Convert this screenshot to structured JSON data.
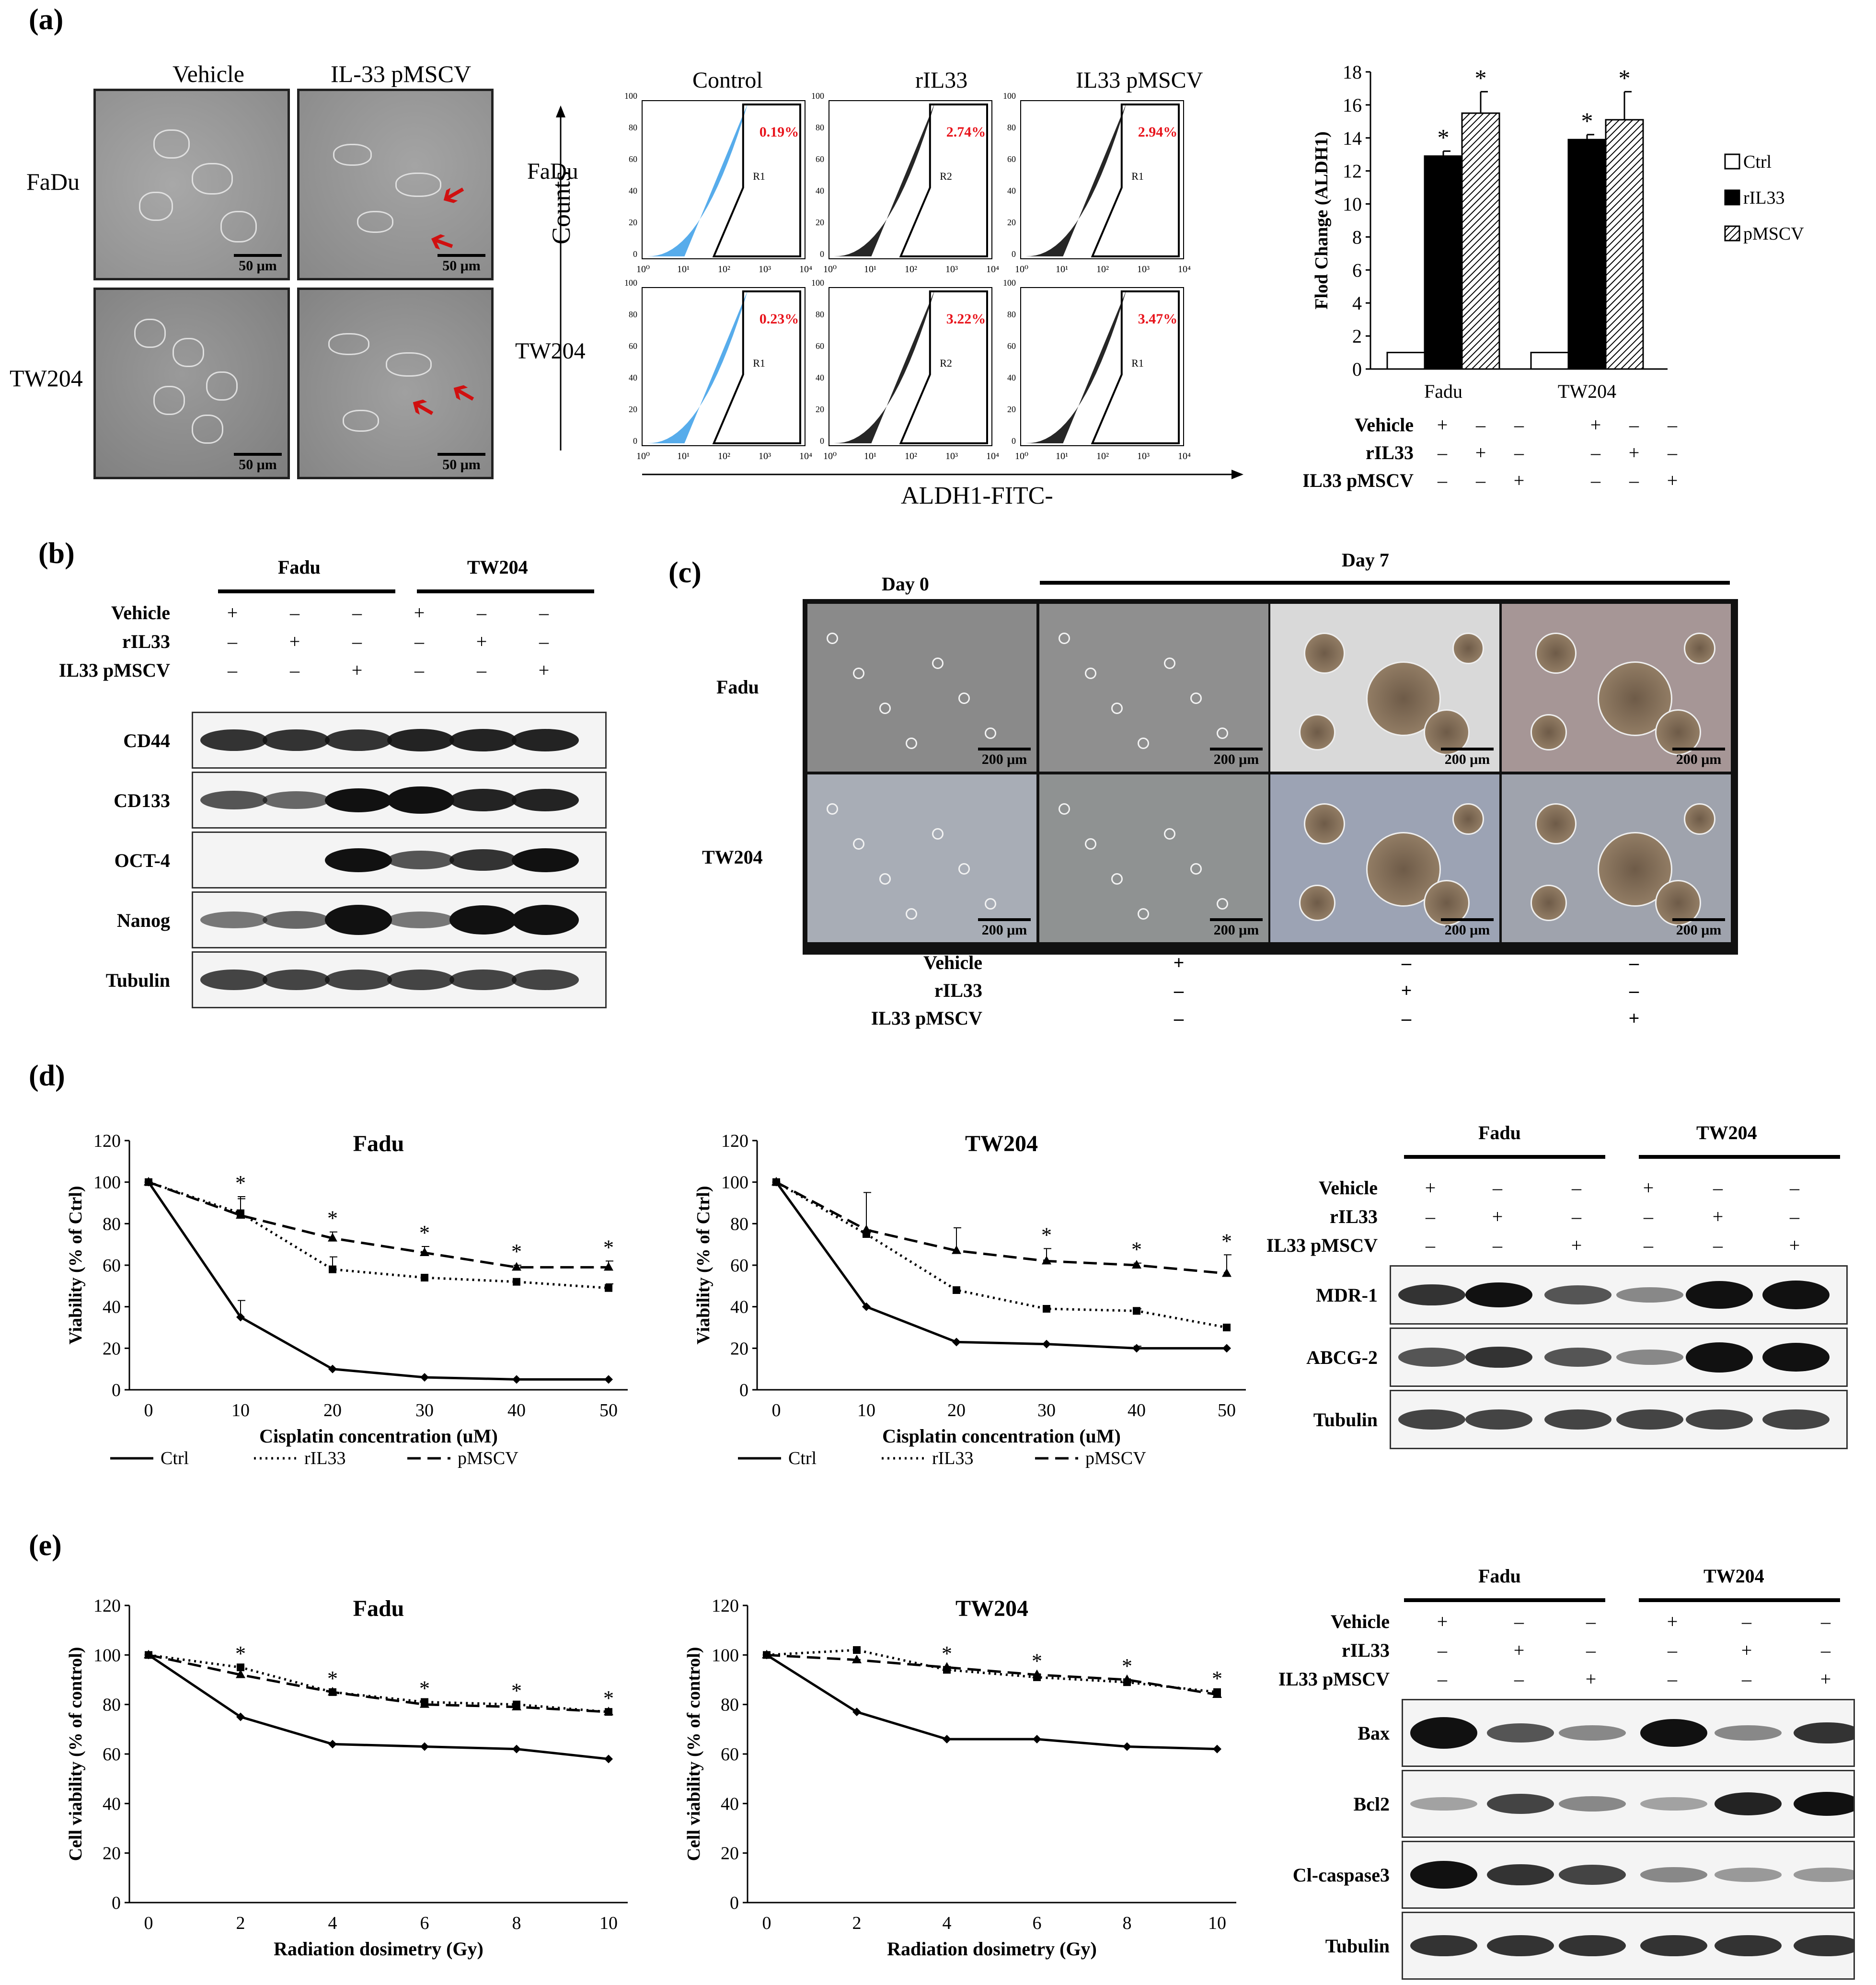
{
  "panels": {
    "a": "(a)",
    "b": "(b)",
    "c": "(c)",
    "d": "(d)",
    "e": "(e)"
  },
  "panel_a": {
    "micro": {
      "col_headers": [
        "Vehicle",
        "IL-33 pMSCV"
      ],
      "row_labels": [
        "FaDu",
        "TW204"
      ],
      "scale": "50 μm"
    },
    "flow": {
      "col_headers": [
        "Control",
        "rIL33",
        "IL33 pMSCV"
      ],
      "row_labels": [
        "FaDu",
        "TW204"
      ],
      "y_axis": "Counts",
      "x_axis": "ALDH1-FITC-",
      "ticks": [
        "10⁰",
        "10¹",
        "10²",
        "10³",
        "10⁴"
      ],
      "yticks": [
        "0",
        "20",
        "40",
        "60",
        "80",
        "100"
      ],
      "gates": [
        "R1",
        "R2",
        "R1",
        "R1",
        "R2",
        "R1"
      ],
      "percents": [
        "0.19%",
        "2.74%",
        "2.94%",
        "0.23%",
        "3.22%",
        "3.47%"
      ],
      "colors": {
        "control": "#3a9ee8",
        "treated": "#000000",
        "percent": "#e8141c"
      }
    },
    "bar_legend": [
      "Ctrl",
      "rIL33",
      "pMSCV"
    ],
    "treat_rows": [
      "Vehicle",
      "rIL33",
      "IL33 pMSCV"
    ],
    "treat_marks": [
      [
        "+",
        "–",
        "–",
        "+",
        "–",
        "–"
      ],
      [
        "–",
        "+",
        "–",
        "–",
        "+",
        "–"
      ],
      [
        "–",
        "–",
        "+",
        "–",
        "–",
        "+"
      ]
    ]
  },
  "chart_data": [
    {
      "type": "bar",
      "categories": [
        "Fadu",
        "TW204"
      ],
      "series": [
        {
          "name": "Ctrl",
          "values": [
            1,
            1
          ]
        },
        {
          "name": "rIL33",
          "values": [
            12.9,
            13.9
          ]
        },
        {
          "name": "pMSCV",
          "values": [
            15.5,
            15.1
          ]
        }
      ],
      "errors": [
        [
          0,
          0
        ],
        [
          0.3,
          0.3
        ],
        [
          1.3,
          1.7
        ]
      ],
      "significant": [
        [
          false,
          false
        ],
        [
          true,
          true
        ],
        [
          true,
          true
        ]
      ],
      "ylabel": "Flod Change (ALDH1)",
      "ylim": [
        0,
        18
      ],
      "yticks": [
        0,
        2,
        4,
        6,
        8,
        10,
        12,
        14,
        16,
        18
      ],
      "legend": "right"
    },
    {
      "type": "line",
      "title": "Fadu",
      "x": [
        0,
        10,
        20,
        30,
        40,
        50
      ],
      "series": [
        {
          "name": "Ctrl",
          "values": [
            100,
            35,
            10,
            6,
            5,
            5
          ],
          "errors": [
            0,
            8,
            0,
            0,
            0,
            0
          ]
        },
        {
          "name": "rIL33",
          "values": [
            100,
            85,
            58,
            54,
            52,
            49
          ],
          "errors": [
            0,
            8,
            6,
            0,
            0,
            2
          ]
        },
        {
          "name": "pMSCV",
          "values": [
            100,
            84,
            73,
            66,
            59,
            59
          ],
          "errors": [
            0,
            8,
            3,
            3,
            1,
            3
          ]
        }
      ],
      "significant_at": [
        10,
        20,
        30,
        40,
        50
      ],
      "xlabel": "Cisplatin concentration (uM)",
      "ylabel": "Viability (% of Ctrl)",
      "ylim": [
        0,
        120
      ],
      "yticks": [
        0,
        20,
        40,
        60,
        80,
        100,
        120
      ]
    },
    {
      "type": "line",
      "title": "TW204",
      "x": [
        0,
        10,
        20,
        30,
        40,
        50
      ],
      "series": [
        {
          "name": "Ctrl",
          "values": [
            100,
            40,
            23,
            22,
            20,
            20
          ],
          "errors": [
            0,
            0,
            0,
            0,
            1,
            0
          ]
        },
        {
          "name": "rIL33",
          "values": [
            100,
            75,
            48,
            39,
            38,
            30
          ],
          "errors": [
            0,
            2,
            0,
            0,
            1,
            0
          ]
        },
        {
          "name": "pMSCV",
          "values": [
            100,
            77,
            67,
            62,
            60,
            56
          ],
          "errors": [
            0,
            18,
            11,
            6,
            1,
            9
          ]
        }
      ],
      "significant_at": [
        30,
        40,
        50
      ],
      "xlabel": "Cisplatin concentration (uM)",
      "ylabel": "Viability (% of Ctrl)",
      "ylim": [
        0,
        120
      ],
      "yticks": [
        0,
        20,
        40,
        60,
        80,
        100,
        120
      ]
    },
    {
      "type": "line",
      "title": "Fadu",
      "x": [
        0,
        2,
        4,
        6,
        8,
        10
      ],
      "series": [
        {
          "name": "Ctrl",
          "values": [
            100,
            75,
            64,
            63,
            62,
            58
          ]
        },
        {
          "name": "rIL33",
          "values": [
            100,
            95,
            85,
            81,
            80,
            77
          ]
        },
        {
          "name": "pMSCV",
          "values": [
            100,
            92,
            85,
            80,
            79,
            77
          ]
        }
      ],
      "significant_at": [
        2,
        4,
        6,
        8,
        10
      ],
      "xlabel": "Radiation dosimetry (Gy)",
      "ylabel": "Cell viability (% of control)",
      "ylim": [
        0,
        120
      ],
      "yticks": [
        0,
        20,
        40,
        60,
        80,
        100,
        120
      ]
    },
    {
      "type": "line",
      "title": "TW204",
      "x": [
        0,
        2,
        4,
        6,
        8,
        10
      ],
      "series": [
        {
          "name": "Ctrl",
          "values": [
            100,
            77,
            66,
            66,
            63,
            62
          ]
        },
        {
          "name": "rIL33",
          "values": [
            100,
            102,
            94,
            91,
            89,
            85
          ]
        },
        {
          "name": "pMSCV",
          "values": [
            100,
            98,
            95,
            92,
            90,
            84
          ]
        }
      ],
      "significant_at": [
        4,
        6,
        8,
        10
      ],
      "xlabel": "Radiation dosimetry (Gy)",
      "ylabel": "Cell viability (% of control)",
      "ylim": [
        0,
        120
      ],
      "yticks": [
        0,
        20,
        40,
        60,
        80,
        100,
        120
      ]
    }
  ],
  "panel_b": {
    "groups": [
      "Fadu",
      "TW204"
    ],
    "treat_rows": [
      "Vehicle",
      "rIL33",
      "IL33 pMSCV"
    ],
    "treat_marks": [
      [
        "+",
        "–",
        "–",
        "+",
        "–",
        "–"
      ],
      [
        "–",
        "+",
        "–",
        "–",
        "+",
        "–"
      ],
      [
        "–",
        "–",
        "+",
        "–",
        "–",
        "+"
      ]
    ],
    "proteins": [
      "CD44",
      "CD133",
      "OCT-4",
      "Nanog",
      "Tubulin"
    ]
  },
  "panel_c": {
    "day0": "Day 0",
    "day7": "Day 7",
    "row_labels": [
      "Fadu",
      "TW204"
    ],
    "scale": "200 μm",
    "treat_rows": [
      "Vehicle",
      "rIL33",
      "IL33 pMSCV"
    ],
    "treat_marks": [
      [
        "+",
        "–",
        "–"
      ],
      [
        "–",
        "+",
        "–"
      ],
      [
        "–",
        "–",
        "+"
      ]
    ]
  },
  "panel_d_blot": {
    "groups": [
      "Fadu",
      "TW204"
    ],
    "treat_rows": [
      "Vehicle",
      "rIL33",
      "IL33 pMSCV"
    ],
    "treat_marks": [
      [
        "+",
        "–",
        "–",
        "+",
        "–",
        "–"
      ],
      [
        "–",
        "+",
        "–",
        "–",
        "+",
        "–"
      ],
      [
        "–",
        "–",
        "+",
        "–",
        "–",
        "+"
      ]
    ],
    "proteins": [
      "MDR-1",
      "ABCG-2",
      "Tubulin"
    ]
  },
  "panel_e_blot": {
    "groups": [
      "Fadu",
      "TW204"
    ],
    "treat_rows": [
      "Vehicle",
      "rIL33",
      "IL33 pMSCV"
    ],
    "treat_marks": [
      [
        "+",
        "–",
        "–",
        "+",
        "–",
        "–"
      ],
      [
        "–",
        "+",
        "–",
        "–",
        "+",
        "–"
      ],
      [
        "–",
        "–",
        "+",
        "–",
        "–",
        "+"
      ]
    ],
    "proteins": [
      "Bax",
      "Bcl2",
      "Cl-caspase3",
      "Tubulin"
    ]
  },
  "line_legend": [
    "Ctrl",
    "rIL33",
    "pMSCV"
  ],
  "sig_mark": "*"
}
